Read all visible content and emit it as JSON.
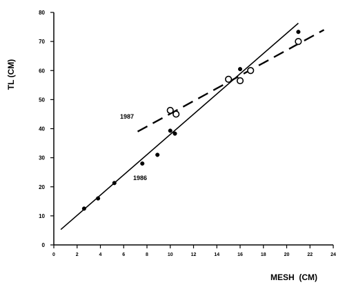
{
  "chart_data": {
    "type": "scatter",
    "title": "",
    "xlabel": "MESH  (CM)",
    "ylabel": "TL (CM)",
    "xlim": [
      0,
      24
    ],
    "ylim": [
      0,
      80
    ],
    "x_ticks": [
      0,
      2,
      4,
      6,
      8,
      10,
      12,
      14,
      16,
      18,
      20,
      22,
      24
    ],
    "x_tick_labels": [
      "0",
      "2",
      "4",
      "6",
      "8",
      "10",
      "12",
      "14",
      "16",
      "18",
      "20",
      "22",
      "24"
    ],
    "y_ticks": [
      0,
      10,
      20,
      30,
      40,
      50,
      60,
      70,
      80
    ],
    "y_tick_labels": [
      "0",
      "10",
      "20",
      "30",
      "40",
      "50",
      "60",
      "70",
      "80"
    ],
    "grid": false,
    "series": [
      {
        "name": "1986",
        "marker": "filled-circle",
        "points": [
          {
            "x": 2.6,
            "y": 12.5
          },
          {
            "x": 3.8,
            "y": 16
          },
          {
            "x": 5.2,
            "y": 21.3
          },
          {
            "x": 7.6,
            "y": 28
          },
          {
            "x": 8.9,
            "y": 31
          },
          {
            "x": 10.0,
            "y": 39.3
          },
          {
            "x": 10.4,
            "y": 38.3
          },
          {
            "x": 16.0,
            "y": 60.5
          },
          {
            "x": 21.0,
            "y": 73.3
          }
        ],
        "fit_line": {
          "style": "solid",
          "x": [
            0.6,
            21.0
          ],
          "y": [
            5.3,
            76.3
          ]
        }
      },
      {
        "name": "1987",
        "marker": "open-circle",
        "points": [
          {
            "x": 10.0,
            "y": 46.3
          },
          {
            "x": 10.5,
            "y": 45.0
          },
          {
            "x": 15.0,
            "y": 57.0
          },
          {
            "x": 16.0,
            "y": 56.5
          },
          {
            "x": 16.9,
            "y": 60.0
          },
          {
            "x": 21.0,
            "y": 70.0
          }
        ],
        "fit_line": {
          "style": "dashed",
          "x": [
            7.2,
            23.2
          ],
          "y": [
            39.0,
            74.0
          ]
        }
      }
    ]
  }
}
